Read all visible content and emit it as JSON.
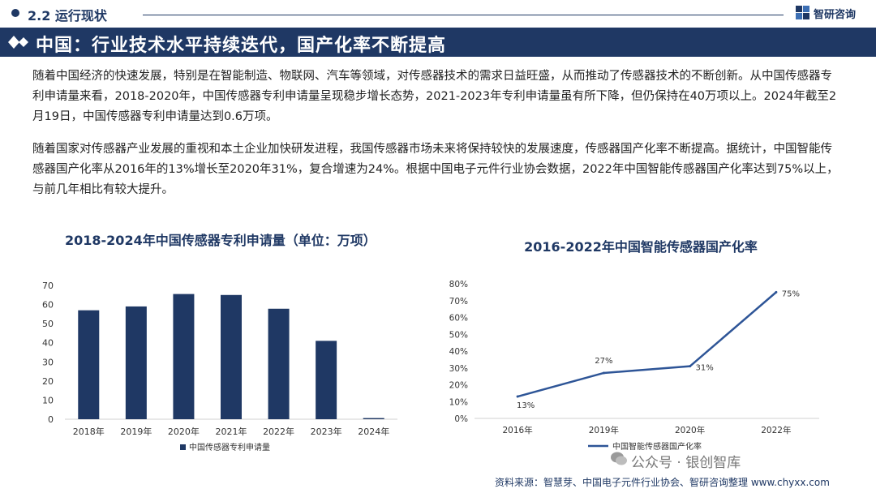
{
  "section": {
    "title": "2.2 运行现状"
  },
  "brand": {
    "name": "智研咨询"
  },
  "banner": {
    "title": "中国：行业技术水平持续迭代，国产化率不断提高"
  },
  "paragraphs": [
    "随着中国经济的快速发展，特别是在智能制造、物联网、汽车等领域，对传感器技术的需求日益旺盛，从而推动了传感器技术的不断创新。从中国传感器专利申请量来看，2018-2020年，中国传感器专利申请量呈现稳步增长态势，2021-2023年专利申请量虽有所下降，但仍保持在40万项以上。2024年截至2月19日，中国传感器专利申请量达到0.6万项。",
    "随着国家对传感器产业发展的重视和本土企业加快研发进程，我国传感器市场未来将保持较快的发展速度，传感器国产化率不断提高。据统计，中国智能传感器国产化率从2016年的13%增长至2020年31%，复合增速为24%。根据中国电子元件行业协会数据，2022年中国智能传感器国产化率达到75%以上，与前几年相比有较大提升。"
  ],
  "colors": {
    "primary": "#1f3864",
    "bar": "#1f3864",
    "line": "#2e5597",
    "axis_text": "#333333"
  },
  "chart_data": [
    {
      "type": "bar",
      "title": "2018-2024年中国传感器专利申请量（单位：万项）",
      "categories": [
        "2018年",
        "2019年",
        "2020年",
        "2021年",
        "2022年",
        "2023年",
        "2024年"
      ],
      "series": [
        {
          "name": "中国传感器专利申请量",
          "values": [
            57,
            59,
            65.5,
            65,
            57.8,
            41,
            0.6
          ]
        }
      ],
      "ylim": [
        0,
        70
      ],
      "yticks": [
        0,
        10,
        20,
        30,
        40,
        50,
        60,
        70
      ],
      "grid": false,
      "legend": "bottom"
    },
    {
      "type": "line",
      "title": "2016-2022年中国智能传感器国产化率",
      "categories": [
        "2016年",
        "2019年",
        "2020年",
        "2022年"
      ],
      "series": [
        {
          "name": "中国智能传感器国产化率",
          "values": [
            13,
            27,
            31,
            75
          ],
          "labels": [
            "13%",
            "27%",
            "31%",
            "75%"
          ]
        }
      ],
      "ylim": [
        0,
        80
      ],
      "yticks": [
        "0%",
        "10%",
        "20%",
        "30%",
        "40%",
        "50%",
        "60%",
        "70%",
        "80%"
      ],
      "grid": false,
      "legend": "bottom"
    }
  ],
  "watermark_text": "公众号 · 银创智库",
  "source": "资料来源：智慧芽、中国电子元件行业协会、智研咨询整理   www.chyxx.com"
}
